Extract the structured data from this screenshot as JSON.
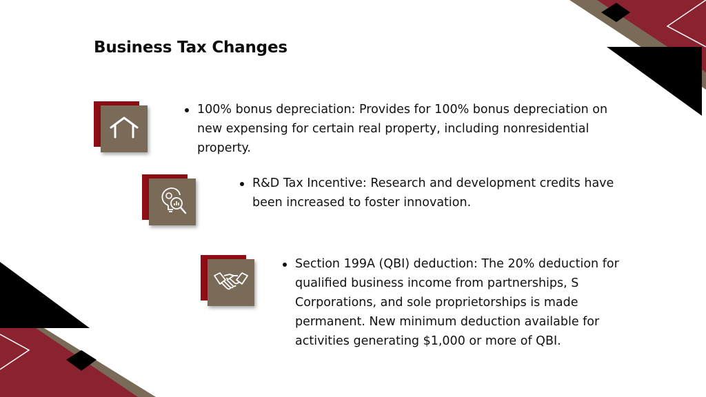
{
  "slide": {
    "title": "Business Tax Changes"
  },
  "colors": {
    "maroon": "#8b2230",
    "dark_red": "#8f0d14",
    "taupe": "#7a6a58",
    "black": "#000000",
    "white": "#ffffff"
  },
  "items": [
    {
      "icon": "house-icon",
      "text": "100% bonus depreciation: Provides for 100% bonus depreciation on new expensing for certain real property, including nonresidential property."
    },
    {
      "icon": "lightbulb-chart-magnifier-icon",
      "text": "R&D Tax Incentive: Research and development credits have been increased to foster innovation."
    },
    {
      "icon": "handshake-icon",
      "text": "Section 199A (QBI) deduction: The 20% deduction for qualified business income from partnerships, S Corporations, and sole proprietorships is made permanent. New minimum deduction available for activities generating $1,000 or more of QBI."
    }
  ]
}
